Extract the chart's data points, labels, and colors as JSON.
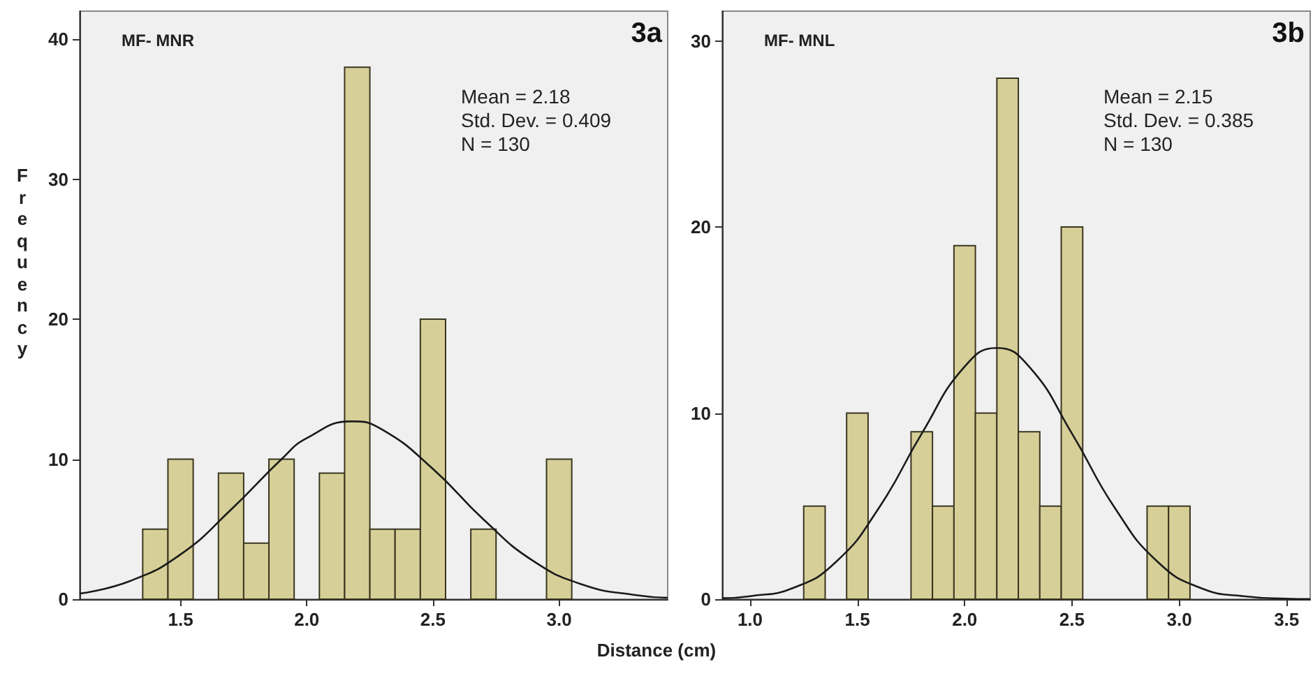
{
  "chart_data": [
    {
      "type": "histogram",
      "title": "MF- MNR",
      "xlabel": "Distance (cm)",
      "ylabel": "Frequency",
      "annotations": [
        "3a",
        "Mean = 2.18",
        "Std. Dev. = 0.409",
        "N = 130"
      ],
      "bins": [
        1.35,
        1.45,
        1.55,
        1.65,
        1.75,
        1.85,
        1.95,
        2.05,
        2.15,
        2.25,
        2.35,
        2.45,
        2.55,
        2.65,
        2.75,
        2.85,
        2.95,
        3.05
      ],
      "values": [
        5,
        10,
        0,
        9,
        4,
        10,
        0,
        9,
        38,
        5,
        5,
        20,
        0,
        5,
        0,
        0,
        10
      ],
      "color": "#d6cf98",
      "series": [
        {
          "type": "line",
          "color": "#1a1a1a",
          "x": [
            1.1,
            1.3,
            1.5,
            1.7,
            1.9,
            2.0,
            2.18,
            2.3,
            2.5,
            2.7,
            2.9,
            3.1,
            3.3,
            3.43
          ],
          "values": [
            0.4,
            1.3,
            3.2,
            6.4,
            10.0,
            11.5,
            12.7,
            12.1,
            9.3,
            5.7,
            2.7,
            1.0,
            0.3,
            0.1
          ]
        }
      ],
      "xlim": [
        1.1,
        3.43
      ],
      "xticks": [
        1.5,
        {
          "value": 2,
          "label": "2.0"
        },
        2.5,
        {
          "value": 3,
          "label": "3.0"
        }
      ],
      "ylim": [
        0,
        42
      ],
      "yticks": [
        0,
        10,
        20,
        30,
        40
      ],
      "grid": false
    },
    {
      "type": "histogram",
      "title": "MF- MNL",
      "annotations": [
        "3b",
        "Mean = 2.15",
        "Std. Dev. = 0.385",
        "N = 130"
      ],
      "bins": [
        1.25,
        1.35,
        1.45,
        1.55,
        1.65,
        1.75,
        1.85,
        1.95,
        2.05,
        2.15,
        2.25,
        2.35,
        2.45,
        2.55,
        2.65,
        2.75,
        2.85,
        2.95,
        3.05
      ],
      "values": [
        5,
        0,
        10,
        0,
        0,
        9,
        5,
        19,
        10,
        28,
        9,
        5,
        20,
        0,
        0,
        0,
        5,
        5
      ],
      "color": "#d6cf98",
      "series": [
        {
          "type": "line",
          "color": "#1a1a1a",
          "x": [
            0.87,
            1.0,
            1.2,
            1.4,
            1.6,
            1.8,
            2.0,
            2.15,
            2.3,
            2.5,
            2.7,
            2.9,
            3.1,
            3.3,
            3.5,
            3.61
          ],
          "values": [
            0.05,
            0.16,
            0.6,
            2.0,
            4.9,
            8.9,
            12.5,
            13.5,
            12.5,
            8.9,
            4.9,
            2.0,
            0.6,
            0.16,
            0.03,
            0.01
          ]
        }
      ],
      "xlim": [
        0.87,
        3.61
      ],
      "xticks": [
        {
          "value": 1,
          "label": "1.0"
        },
        1.5,
        {
          "value": 2,
          "label": "2.0"
        },
        2.5,
        {
          "value": 3,
          "label": "3.0"
        },
        3.5
      ],
      "ylim": [
        0,
        31.6
      ],
      "yticks": [
        0,
        10,
        20,
        30
      ],
      "grid": false
    }
  ]
}
